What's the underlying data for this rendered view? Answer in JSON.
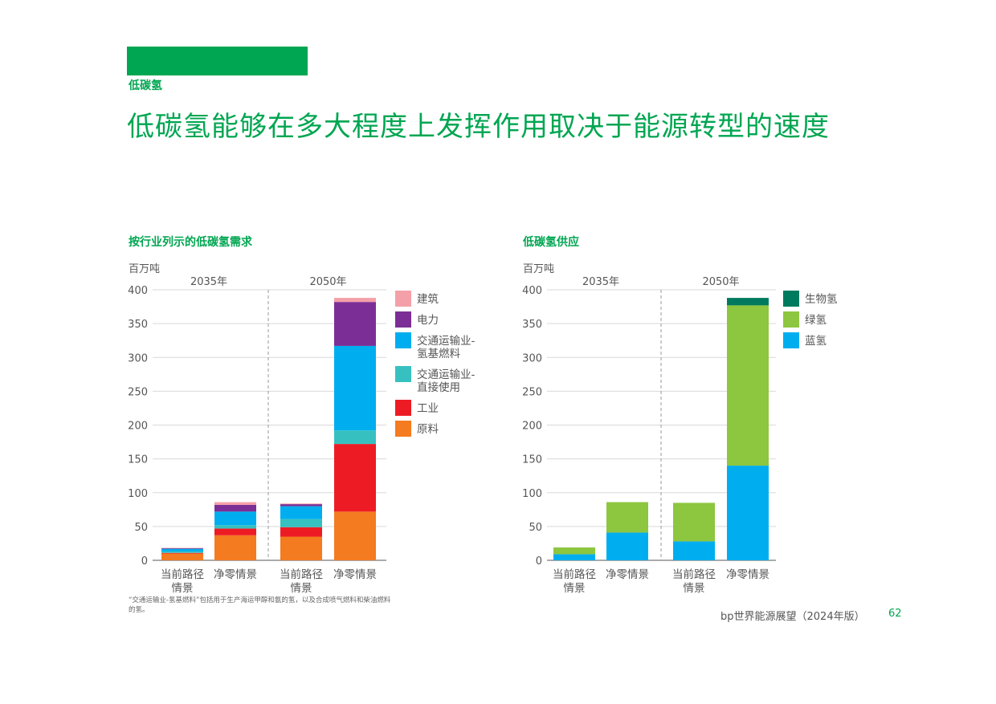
{
  "header": {
    "section_label": "低碳氢",
    "title": "低碳氢能够在多大程度上发挥作用取决于能源转型的速度"
  },
  "footnote": "“交通运输业-氢基燃料”包括用于生产海运甲醇和氨的氢，以及合成喷气燃料和柴油燃料的氢。",
  "footer": {
    "publication": "bp世界能源展望（2024年版）",
    "page_number": "62"
  },
  "chart_data": [
    {
      "type": "bar",
      "stacked": true,
      "title": "按行业列示的低碳氢需求",
      "ylabel": "百万吨",
      "ylim": [
        0,
        400
      ],
      "yticks": [
        0,
        50,
        100,
        150,
        200,
        250,
        300,
        350,
        400
      ],
      "grid": true,
      "legend_position": "right",
      "groups": [
        {
          "label": "2035年",
          "categories": [
            "当前路径情景",
            "净零情景"
          ]
        },
        {
          "label": "2050年",
          "categories": [
            "当前路径情景",
            "净零情景"
          ]
        }
      ],
      "categories": [
        {
          "line1": "当前路径",
          "line2": "情景"
        },
        {
          "line1": "净零情景",
          "line2": ""
        },
        {
          "line1": "当前路径",
          "line2": "情景"
        },
        {
          "line1": "净零情景",
          "line2": ""
        }
      ],
      "series": [
        {
          "name": "原料",
          "name_lines": [
            "原料"
          ],
          "color": "#f47b20",
          "values": [
            10,
            37,
            35,
            72
          ]
        },
        {
          "name": "工业",
          "name_lines": [
            "工业"
          ],
          "color": "#ed1c24",
          "values": [
            1,
            10,
            14,
            100
          ]
        },
        {
          "name": "交通运输业-直接使用",
          "name_lines": [
            "交通运输业-",
            "直接使用"
          ],
          "color": "#36c1c0",
          "values": [
            2,
            5,
            12,
            20
          ]
        },
        {
          "name": "交通运输业-氢基燃料",
          "name_lines": [
            "交通运输业-",
            "氢基燃料"
          ],
          "color": "#00aeef",
          "values": [
            4,
            20,
            19,
            125
          ]
        },
        {
          "name": "电力",
          "name_lines": [
            "电力"
          ],
          "color": "#7b2f96",
          "values": [
            1,
            10,
            3,
            65
          ]
        },
        {
          "name": "建筑",
          "name_lines": [
            "建筑"
          ],
          "color": "#f4a0a8",
          "values": [
            0.5,
            4,
            1,
            6
          ]
        }
      ]
    },
    {
      "type": "bar",
      "stacked": true,
      "title": "低碳氢供应",
      "ylabel": "百万吨",
      "ylim": [
        0,
        400
      ],
      "yticks": [
        0,
        50,
        100,
        150,
        200,
        250,
        300,
        350,
        400
      ],
      "grid": true,
      "legend_position": "right",
      "groups": [
        {
          "label": "2035年",
          "categories": [
            "当前路径情景",
            "净零情景"
          ]
        },
        {
          "label": "2050年",
          "categories": [
            "当前路径情景",
            "净零情景"
          ]
        }
      ],
      "categories": [
        {
          "line1": "当前路径",
          "line2": "情景"
        },
        {
          "line1": "净零情景",
          "line2": ""
        },
        {
          "line1": "当前路径",
          "line2": "情景"
        },
        {
          "line1": "净零情景",
          "line2": ""
        }
      ],
      "series": [
        {
          "name": "蓝氢",
          "name_lines": [
            "蓝氢"
          ],
          "color": "#00aeef",
          "values": [
            9,
            41,
            28,
            140
          ]
        },
        {
          "name": "绿氢",
          "name_lines": [
            "绿氢"
          ],
          "color": "#8dc63f",
          "values": [
            10,
            45,
            57,
            237
          ]
        },
        {
          "name": "生物氢",
          "name_lines": [
            "生物氢"
          ],
          "color": "#007a5e",
          "values": [
            0,
            0,
            0,
            11
          ]
        }
      ]
    }
  ]
}
